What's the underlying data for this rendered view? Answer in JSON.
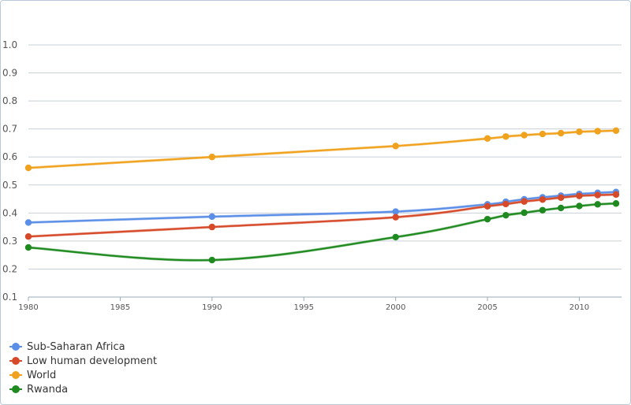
{
  "chart_data": {
    "type": "line",
    "x": [
      1980,
      1990,
      2000,
      2005,
      2006,
      2007,
      2008,
      2009,
      2010,
      2011,
      2012
    ],
    "x_ticks": [
      "1980",
      "1985",
      "1990",
      "1995",
      "2000",
      "2005",
      "2010"
    ],
    "y_ticks": [
      "0.1",
      "0.2",
      "0.3",
      "0.4",
      "0.5",
      "0.6",
      "0.7",
      "0.8",
      "0.9",
      "1.0"
    ],
    "xlim": [
      1980,
      2012.3
    ],
    "ylim": [
      0.1,
      1.0
    ],
    "grid": true,
    "legend_position": "bottom-left",
    "series": [
      {
        "name": "Sub-Saharan Africa",
        "color": "#5b8ee6",
        "values": [
          0.366,
          0.387,
          0.405,
          0.431,
          0.44,
          0.449,
          0.456,
          0.462,
          0.468,
          0.472,
          0.475
        ]
      },
      {
        "name": "Low human development",
        "color": "#d64a2a",
        "values": [
          0.316,
          0.35,
          0.385,
          0.424,
          0.432,
          0.441,
          0.448,
          0.455,
          0.461,
          0.464,
          0.466
        ]
      },
      {
        "name": "World",
        "color": "#f0a21e",
        "values": [
          0.561,
          0.6,
          0.639,
          0.666,
          0.673,
          0.678,
          0.682,
          0.685,
          0.69,
          0.692,
          0.694
        ]
      },
      {
        "name": "Rwanda",
        "color": "#1f8a1f",
        "values": [
          0.277,
          0.232,
          0.314,
          0.378,
          0.392,
          0.401,
          0.41,
          0.418,
          0.425,
          0.431,
          0.434
        ]
      }
    ]
  }
}
